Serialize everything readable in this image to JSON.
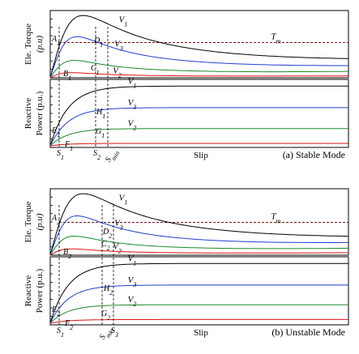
{
  "chart_data": [
    {
      "type": "line",
      "caption": "(a) Stable Mode",
      "xlabel": "Slip",
      "points": {
        "torque": [
          "A",
          "B",
          "C",
          "D"
        ],
        "power": [
          "E",
          "F",
          "G",
          "H"
        ]
      },
      "torque_plot": {
        "ylabel_lines": [
          "Ele. Torque",
          "(p.u)"
        ],
        "reference_label": "T",
        "reference_subscript": "m",
        "reference_level": 0.55,
        "series": [
          {
            "name": "V1",
            "color": "#000000",
            "peak": 0.97,
            "peak_slip": 0.11,
            "tail": 0.3
          },
          {
            "name": "V3",
            "color": "#1f3fcf",
            "peak": 0.64,
            "peak_slip": 0.09,
            "tail": 0.19
          },
          {
            "name": "V2",
            "color": "#1a8a2a",
            "peak": 0.27,
            "peak_slip": 0.08,
            "tail": 0.1
          },
          {
            "name": "",
            "color": "#e01010",
            "peak": 0.08,
            "peak_slip": 0.07,
            "tail": 0.03
          }
        ]
      },
      "power_plot": {
        "ylabel_lines": [
          "Reactive",
          "Power (p.u.)"
        ],
        "series": [
          {
            "name": "V1",
            "color": "#000000",
            "plateau": 0.97
          },
          {
            "name": "V3",
            "color": "#1f3fcf",
            "plateau": 0.62
          },
          {
            "name": "V2",
            "color": "#1a8a2a",
            "plateau": 0.28
          },
          {
            "name": "",
            "color": "#e01010",
            "plateau": 0.04
          }
        ]
      },
      "x_markers": [
        {
          "label": "S",
          "sub": "1"
        },
        {
          "label": "S",
          "sub": "2"
        },
        {
          "label": "S",
          "sub": "min"
        }
      ]
    },
    {
      "type": "line",
      "caption": "(b) Unstable Mode",
      "xlabel": "Slip",
      "points": {
        "torque": [
          "A",
          "B",
          "C",
          "D"
        ],
        "power": [
          "E",
          "F",
          "G",
          "H"
        ]
      },
      "torque_plot": {
        "ylabel_lines": [
          "Ele. Torque",
          "(p.u)"
        ],
        "reference_label": "T",
        "reference_subscript": "m",
        "reference_level": 0.52,
        "series": [
          {
            "name": "V1",
            "color": "#000000",
            "peak": 0.97,
            "peak_slip": 0.11,
            "tail": 0.3
          },
          {
            "name": "V3",
            "color": "#1f3fcf",
            "peak": 0.62,
            "peak_slip": 0.09,
            "tail": 0.2
          },
          {
            "name": "V2",
            "color": "#1a8a2a",
            "peak": 0.3,
            "peak_slip": 0.08,
            "tail": 0.11
          },
          {
            "name": "",
            "color": "#e01010",
            "peak": 0.1,
            "peak_slip": 0.07,
            "tail": 0.04
          }
        ]
      },
      "power_plot": {
        "ylabel_lines": [
          "Reactive",
          "Power (p.u.)"
        ],
        "series": [
          {
            "name": "V1",
            "color": "#000000",
            "plateau": 0.97
          },
          {
            "name": "V3",
            "color": "#1f3fcf",
            "plateau": 0.62
          },
          {
            "name": "V2",
            "color": "#1a8a2a",
            "plateau": 0.3
          },
          {
            "name": "",
            "color": "#e01010",
            "plateau": 0.06
          }
        ]
      },
      "x_markers": [
        {
          "label": "S",
          "sub": "1"
        },
        {
          "label": "S",
          "sub": "min"
        },
        {
          "label": "S",
          "sub": "3"
        }
      ]
    }
  ]
}
